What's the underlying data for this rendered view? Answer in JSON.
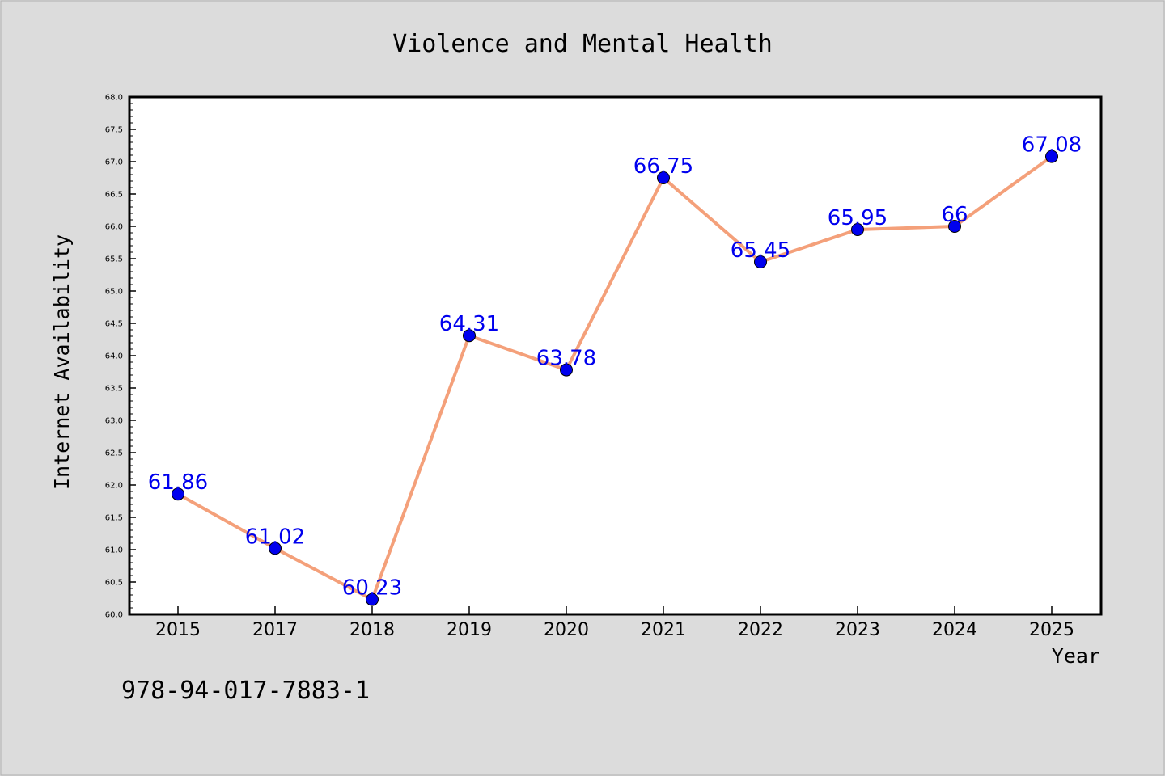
{
  "chart_data": {
    "type": "line",
    "title": "Violence and Mental Health",
    "xlabel": "Year",
    "ylabel": "Internet Availability",
    "categories": [
      "2015",
      "2017",
      "2018",
      "2019",
      "2020",
      "2021",
      "2022",
      "2023",
      "2024",
      "2025"
    ],
    "values": [
      61.86,
      61.02,
      60.23,
      64.31,
      63.78,
      66.75,
      65.45,
      65.95,
      66,
      67.08
    ],
    "data_labels": [
      "61.86",
      "61.02",
      "60.23",
      "64.31",
      "63.78",
      "66.75",
      "65.45",
      "65.95",
      "66",
      "67.08"
    ],
    "ylim": [
      60.0,
      68.0
    ],
    "yticks": [
      "60.0",
      "60.5",
      "61.0",
      "61.5",
      "62.0",
      "62.5",
      "63.0",
      "63.5",
      "64.0",
      "64.5",
      "65.0",
      "65.5",
      "66.0",
      "66.5",
      "67.0",
      "67.5",
      "68.0"
    ],
    "grid": false,
    "legend": "none",
    "colors": {
      "line": "#f4a07a",
      "marker": "#0000ee",
      "label": "#0000ee",
      "background": "#dcdcdc",
      "plot_area": "#ffffff"
    }
  },
  "annotation": "978-94-017-7883-1"
}
